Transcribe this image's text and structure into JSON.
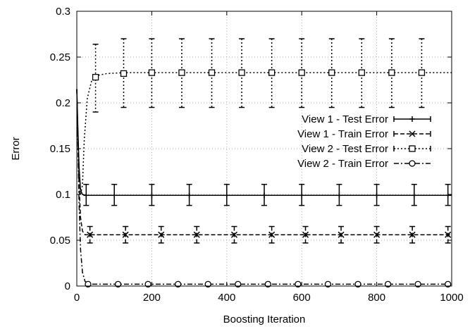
{
  "chart_data": {
    "type": "line",
    "title": "",
    "xlabel": "Boosting Iteration",
    "ylabel": "Error",
    "xlim": [
      0,
      1000
    ],
    "ylim": [
      0,
      0.3
    ],
    "xticks": [
      0,
      200,
      400,
      600,
      800,
      1000
    ],
    "yticks": [
      0,
      0.05,
      0.1,
      0.15,
      0.2,
      0.25,
      0.3
    ],
    "xtick_labels": [
      "0",
      "200",
      "400",
      "600",
      "800",
      "1000"
    ],
    "ytick_labels": [
      "0",
      "0.05",
      "0.1",
      "0.15",
      "0.2",
      "0.25",
      "0.3"
    ],
    "grid": true,
    "legend_position": "right",
    "series": [
      {
        "name": "View 1 - Test Error",
        "line_style": "solid",
        "marker": "plus",
        "curve": [
          [
            0,
            0.215
          ],
          [
            3,
            0.17
          ],
          [
            6,
            0.13
          ],
          [
            10,
            0.105
          ],
          [
            15,
            0.1
          ],
          [
            25,
            0.099
          ],
          [
            1000,
            0.099
          ]
        ],
        "points": [
          [
            25,
            0.099
          ],
          [
            100,
            0.099
          ],
          [
            200,
            0.099
          ],
          [
            300,
            0.099
          ],
          [
            400,
            0.099
          ],
          [
            500,
            0.099
          ],
          [
            600,
            0.099
          ],
          [
            700,
            0.099
          ],
          [
            800,
            0.099
          ],
          [
            900,
            0.099
          ],
          [
            990,
            0.099
          ]
        ],
        "error_low": 0.088,
        "error_high": 0.111
      },
      {
        "name": "View 1 - Train Error",
        "line_style": "dashed",
        "marker": "x",
        "curve": [
          [
            0,
            0.215
          ],
          [
            3,
            0.16
          ],
          [
            6,
            0.11
          ],
          [
            10,
            0.075
          ],
          [
            15,
            0.06
          ],
          [
            22,
            0.056
          ],
          [
            1000,
            0.056
          ]
        ],
        "points": [
          [
            35,
            0.056
          ],
          [
            130,
            0.056
          ],
          [
            225,
            0.056
          ],
          [
            320,
            0.056
          ],
          [
            420,
            0.056
          ],
          [
            520,
            0.056
          ],
          [
            610,
            0.056
          ],
          [
            705,
            0.056
          ],
          [
            800,
            0.056
          ],
          [
            895,
            0.056
          ],
          [
            990,
            0.056
          ]
        ],
        "error_low": 0.047,
        "error_high": 0.065
      },
      {
        "name": "View 2 - Test Error",
        "line_style": "dotted",
        "marker": "square",
        "curve": [
          [
            0,
            0.215
          ],
          [
            5,
            0.13
          ],
          [
            10,
            0.1
          ],
          [
            15,
            0.11
          ],
          [
            20,
            0.16
          ],
          [
            28,
            0.205
          ],
          [
            40,
            0.225
          ],
          [
            55,
            0.23
          ],
          [
            80,
            0.232
          ],
          [
            130,
            0.233
          ],
          [
            1000,
            0.233
          ]
        ],
        "points": [
          [
            50,
            0.228
          ],
          [
            125,
            0.232
          ],
          [
            200,
            0.233
          ],
          [
            280,
            0.233
          ],
          [
            360,
            0.233
          ],
          [
            440,
            0.233
          ],
          [
            520,
            0.233
          ],
          [
            600,
            0.233
          ],
          [
            680,
            0.233
          ],
          [
            760,
            0.233
          ],
          [
            840,
            0.233
          ],
          [
            920,
            0.233
          ]
        ],
        "error_low": 0.195,
        "error_high": 0.27,
        "first_error_low": 0.19,
        "first_error_high": 0.264
      },
      {
        "name": "View 2 - Train Error",
        "line_style": "dashdot",
        "marker": "circle",
        "curve": [
          [
            0,
            0.215
          ],
          [
            3,
            0.15
          ],
          [
            6,
            0.09
          ],
          [
            10,
            0.04
          ],
          [
            15,
            0.015
          ],
          [
            22,
            0.005
          ],
          [
            35,
            0.002
          ],
          [
            1000,
            0.002
          ]
        ],
        "points": [
          [
            30,
            0.002
          ],
          [
            110,
            0.002
          ],
          [
            190,
            0.002
          ],
          [
            270,
            0.002
          ],
          [
            350,
            0.002
          ],
          [
            430,
            0.002
          ],
          [
            510,
            0.002
          ],
          [
            590,
            0.002
          ],
          [
            670,
            0.002
          ],
          [
            750,
            0.002
          ],
          [
            830,
            0.002
          ],
          [
            910,
            0.002
          ],
          [
            990,
            0.002
          ]
        ]
      }
    ]
  }
}
